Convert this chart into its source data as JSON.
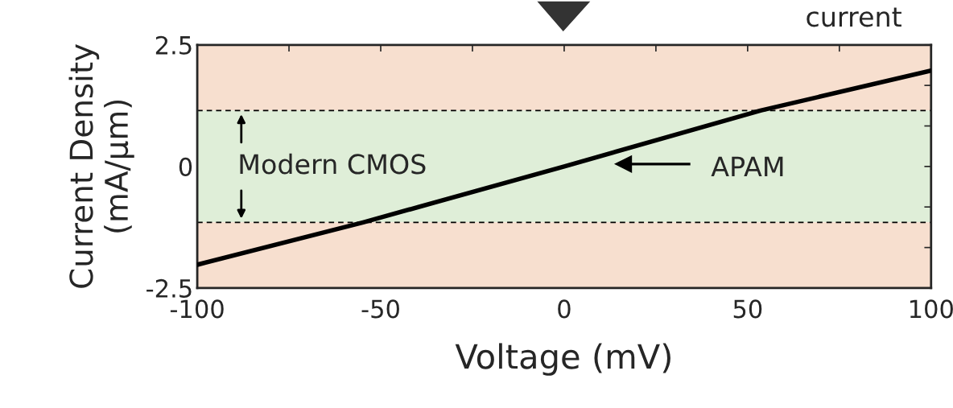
{
  "chart_data": {
    "type": "line",
    "xlabel": "Voltage (mV)",
    "ylabel": "Current Density\n(mA/µm)",
    "xlim": [
      -100,
      100
    ],
    "ylim": [
      -2.5,
      2.5
    ],
    "xticks": [
      -100,
      {
        "value": -75,
        "label": null
      },
      -50,
      {
        "value": -25,
        "label": null
      },
      0,
      {
        "value": 25,
        "label": null
      },
      50,
      {
        "value": 75,
        "label": null
      },
      100
    ],
    "yticks": [
      -2.5,
      {
        "value": -1.667,
        "label": null
      },
      {
        "value": -0.833,
        "label": null
      },
      0,
      {
        "value": 0.833,
        "label": null
      },
      {
        "value": 1.667,
        "label": null
      },
      2.5
    ],
    "series": [
      {
        "color": "#000000",
        "x": [
          -100,
          -54.8,
          0,
          53.5,
          100
        ],
        "values": [
          -2.02,
          -1.15,
          0,
          1.15,
          1.97
        ]
      }
    ],
    "bands": [
      {
        "axis": "y",
        "from": 1.15,
        "to": 2.5,
        "color": "#f7dfcf"
      },
      {
        "axis": "y",
        "from": -1.15,
        "to": 1.15,
        "color": "#dfeed8"
      },
      {
        "axis": "y",
        "from": -2.5,
        "to": -1.15,
        "color": "#f7dfcf"
      }
    ],
    "ref_lines": [
      {
        "axis": "y",
        "value": 1.15,
        "color": "#000000",
        "line_style": "dashed"
      },
      {
        "axis": "y",
        "value": -1.15,
        "color": "#000000",
        "line_style": "dashed"
      }
    ],
    "annotations": [
      "Modern CMOS",
      "APAM",
      "current"
    ],
    "grid": false,
    "marker": "none",
    "line_style": "solid"
  }
}
